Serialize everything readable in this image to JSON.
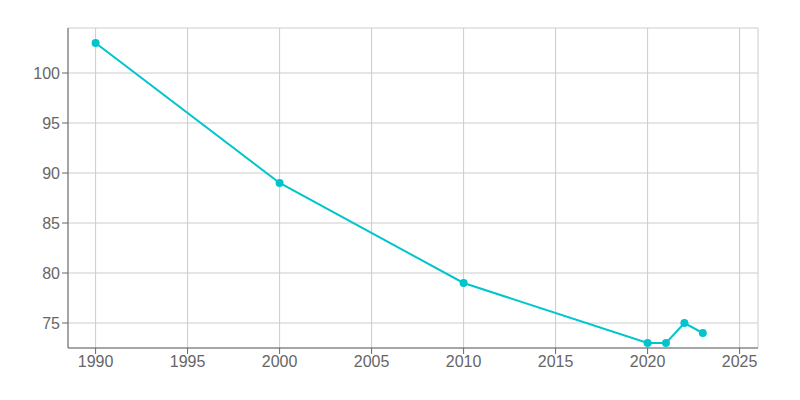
{
  "chart_data": {
    "type": "line",
    "x": [
      1990,
      2000,
      2010,
      2020,
      2021,
      2022,
      2023
    ],
    "values": [
      103,
      89,
      79,
      73,
      73,
      75,
      74
    ],
    "color": "#00c5cd",
    "marker": "circle",
    "xlim": [
      1988.5,
      2026
    ],
    "ylim": [
      72.5,
      104.5
    ],
    "xticks": [
      1990,
      1995,
      2000,
      2005,
      2010,
      2015,
      2020,
      2025
    ],
    "yticks": [
      75,
      80,
      85,
      90,
      95,
      100
    ],
    "grid": true
  }
}
